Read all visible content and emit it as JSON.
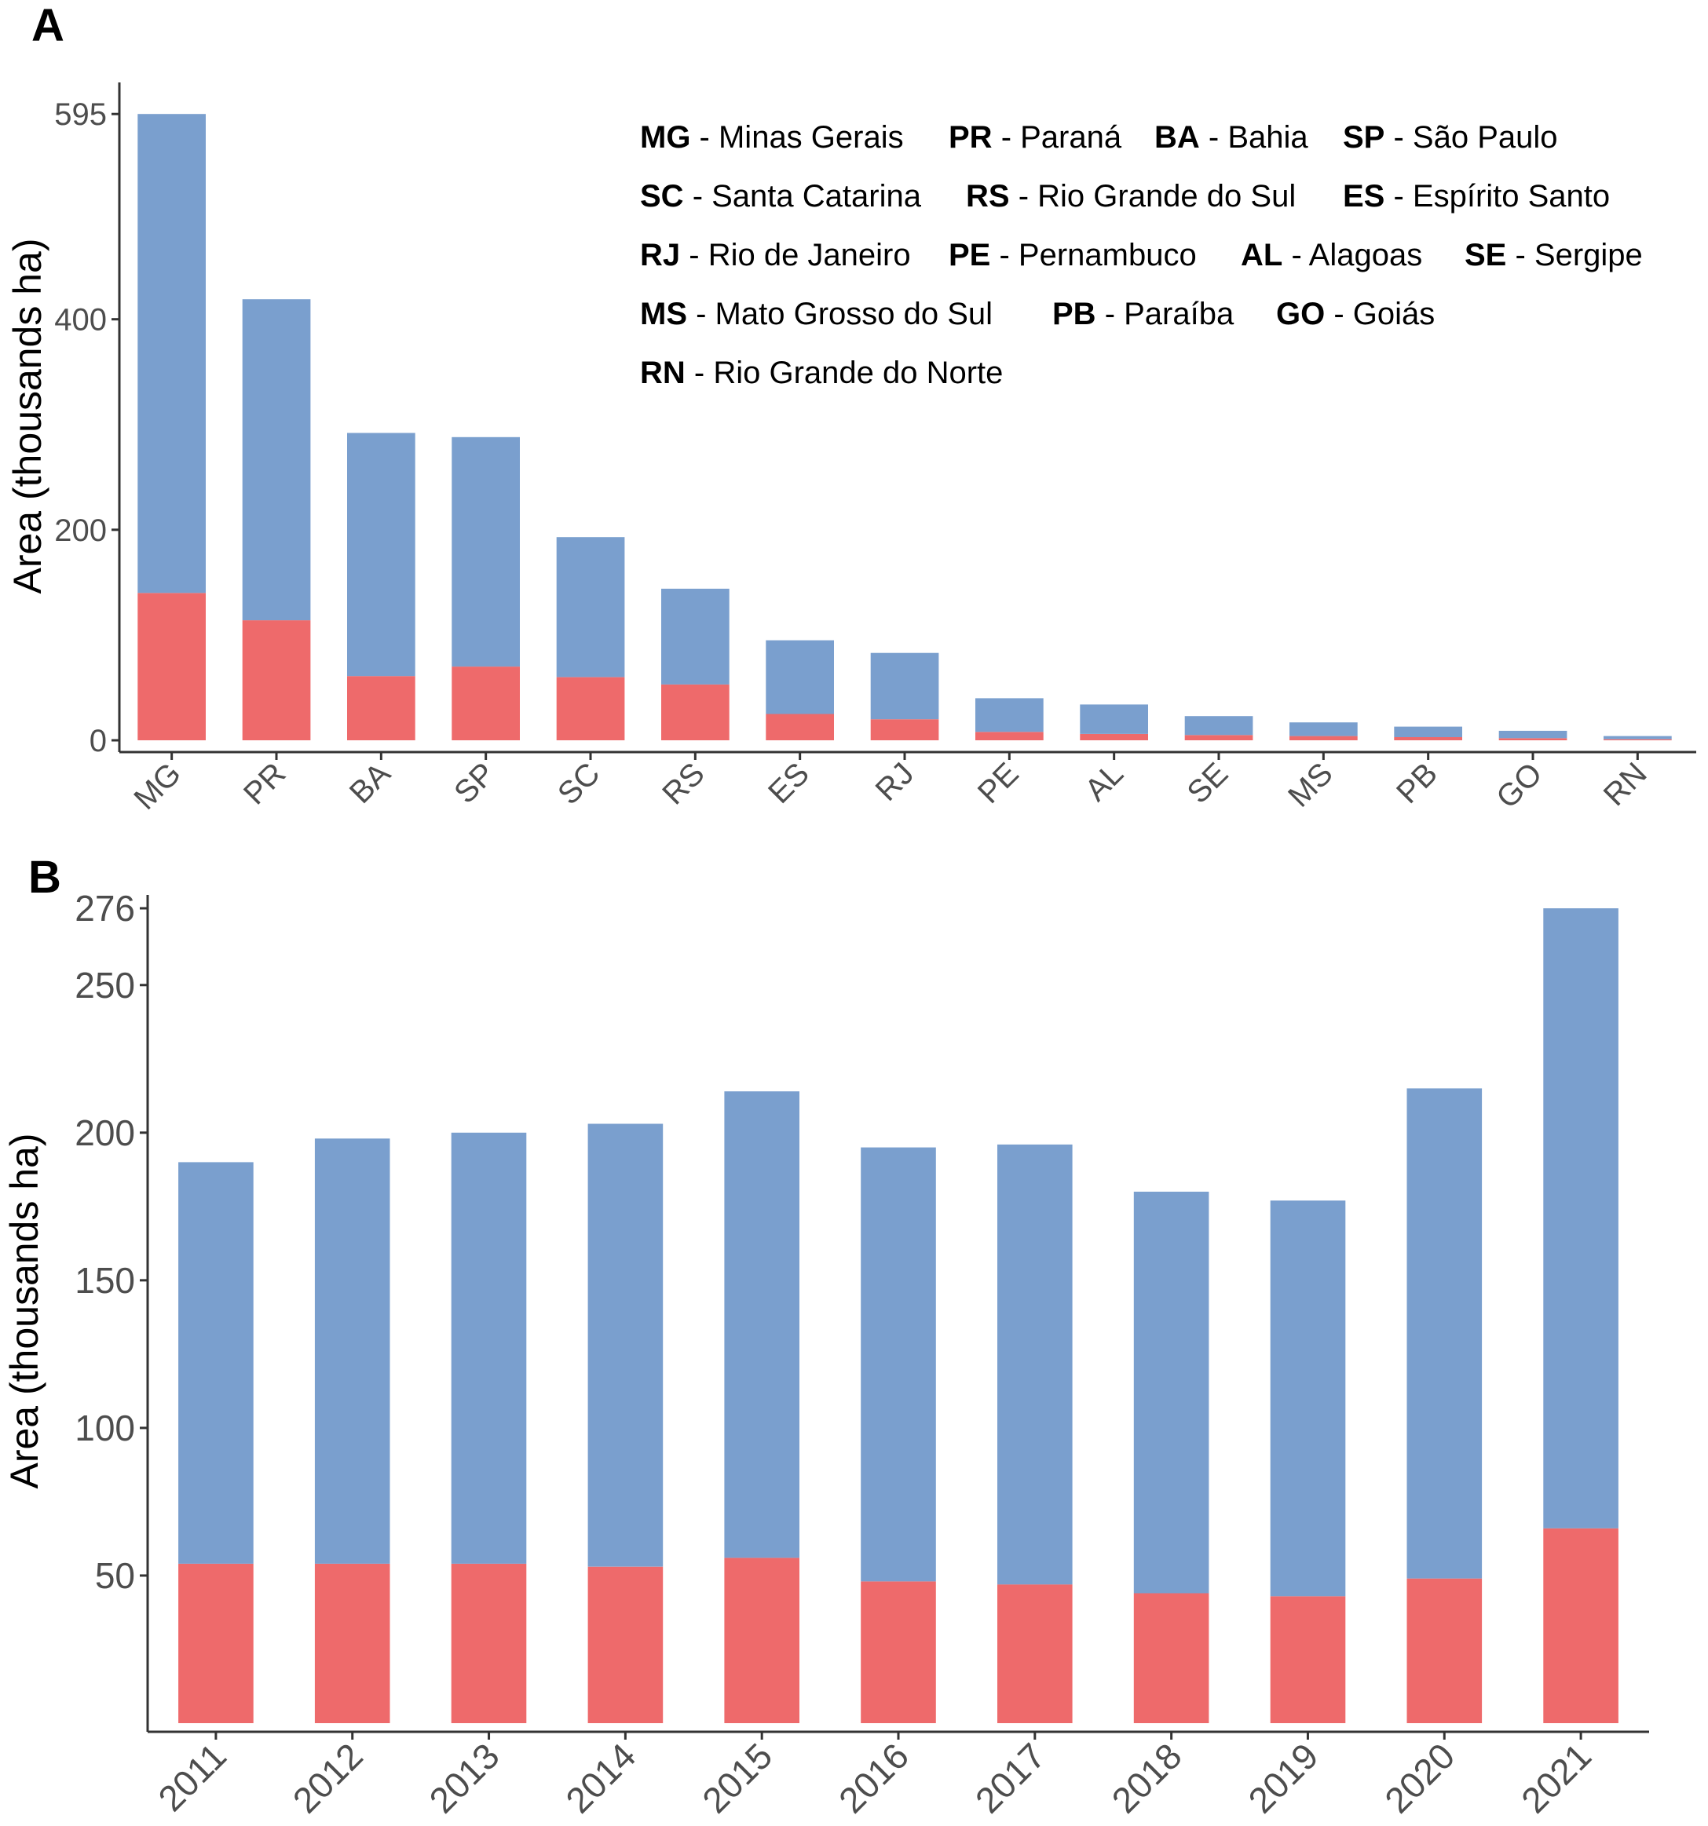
{
  "colors": {
    "blue": "#7a9fce",
    "red": "#ee6a6b"
  },
  "chart_data": [
    {
      "panel": "A",
      "type": "bar",
      "stacked": true,
      "ylabel": "Area (thousands ha)",
      "ylim": [
        0,
        625
      ],
      "yticks": [
        0,
        200,
        400,
        595
      ],
      "categories": [
        "MG",
        "PR",
        "BA",
        "SP",
        "SC",
        "RS",
        "ES",
        "RJ",
        "PE",
        "AL",
        "SE",
        "MS",
        "PB",
        "GO",
        "RN"
      ],
      "series": [
        {
          "name": "lower",
          "color": "#ee6a6b",
          "values": [
            140,
            114,
            61,
            70,
            60,
            53,
            25,
            20,
            8,
            6,
            5,
            4,
            3,
            2,
            1
          ]
        },
        {
          "name": "upper",
          "color": "#7a9fce",
          "values": [
            455,
            305,
            231,
            218,
            133,
            91,
            70,
            63,
            32,
            28,
            18,
            13,
            10,
            7,
            3
          ]
        }
      ],
      "legend_rows": [
        [
          {
            "abbr": "MG",
            "name": "Minas Gerais"
          },
          {
            "abbr": "PR",
            "name": "Paraná"
          },
          {
            "abbr": "BA",
            "name": "Bahia"
          },
          {
            "abbr": "SP",
            "name": "São Paulo"
          }
        ],
        [
          {
            "abbr": "SC",
            "name": "Santa Catarina"
          },
          {
            "abbr": "RS",
            "name": "Rio Grande do Sul"
          },
          {
            "abbr": "ES",
            "name": "Espírito Santo"
          }
        ],
        [
          {
            "abbr": "RJ",
            "name": "Rio de Janeiro"
          },
          {
            "abbr": "PE",
            "name": "Pernambuco"
          },
          {
            "abbr": "AL",
            "name": "Alagoas"
          },
          {
            "abbr": "SE",
            "name": "Sergipe"
          }
        ],
        [
          {
            "abbr": "MS",
            "name": "Mato Grosso do Sul"
          },
          {
            "abbr": "PB",
            "name": "Paraíba"
          },
          {
            "abbr": "GO",
            "name": "Goiás"
          }
        ],
        [
          {
            "abbr": "RN",
            "name": "Rio Grande do Norte"
          }
        ]
      ]
    },
    {
      "panel": "B",
      "type": "bar",
      "stacked": true,
      "ylabel": "Area (thousands ha)",
      "ylim": [
        0,
        276
      ],
      "yticks": [
        50,
        100,
        150,
        200,
        250,
        276
      ],
      "categories": [
        "2011",
        "2012",
        "2013",
        "2014",
        "2015",
        "2016",
        "2017",
        "2018",
        "2019",
        "2020",
        "2021"
      ],
      "series": [
        {
          "name": "lower",
          "color": "#ee6a6b",
          "values": [
            54,
            54,
            54,
            53,
            56,
            48,
            47,
            44,
            43,
            49,
            66
          ]
        },
        {
          "name": "upper",
          "color": "#7a9fce",
          "values": [
            136,
            144,
            146,
            150,
            158,
            147,
            149,
            136,
            134,
            166,
            210
          ]
        }
      ]
    }
  ]
}
